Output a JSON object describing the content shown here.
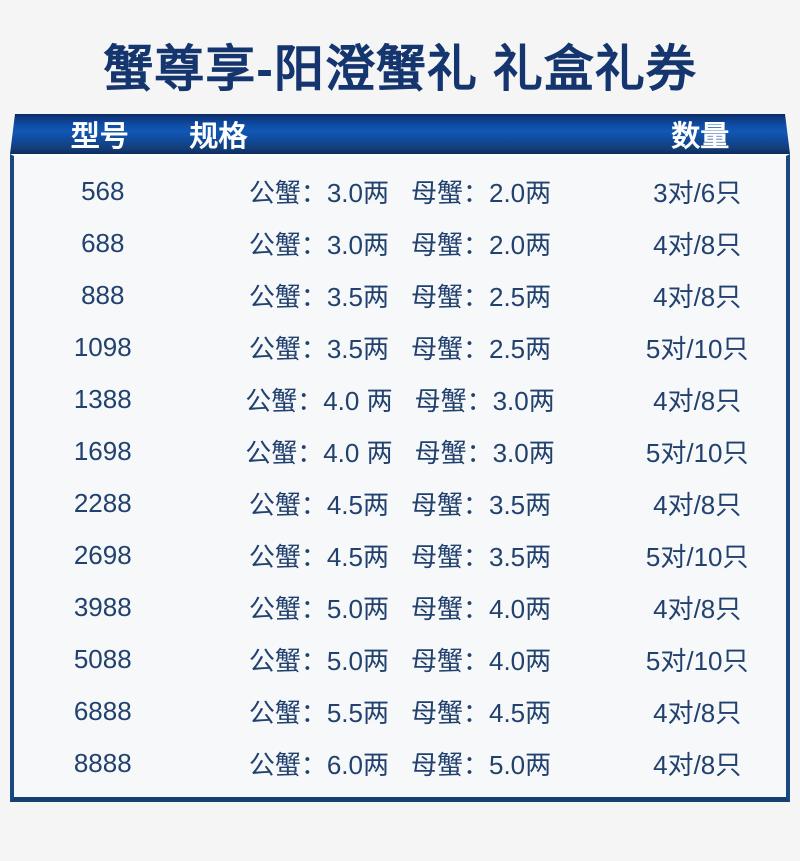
{
  "page": {
    "title": "蟹尊享-阳澄蟹礼 礼盒礼券",
    "accent_color": "#1157b5",
    "border_color": "#1b4782",
    "text_color": "#21416f",
    "title_color": "#14356d"
  },
  "table": {
    "columns": {
      "model": "型号",
      "spec": "规格",
      "quantity": "数量"
    },
    "rows": [
      {
        "model": "568",
        "spec_male": "公蟹：3.0两",
        "spec_female": "母蟹：2.0两",
        "quantity": "3对/6只"
      },
      {
        "model": "688",
        "spec_male": "公蟹：3.0两",
        "spec_female": "母蟹：2.0两",
        "quantity": "4对/8只"
      },
      {
        "model": "888",
        "spec_male": "公蟹：3.5两",
        "spec_female": "母蟹：2.5两",
        "quantity": "4对/8只"
      },
      {
        "model": "1098",
        "spec_male": "公蟹：3.5两",
        "spec_female": "母蟹：2.5两",
        "quantity": "5对/10只"
      },
      {
        "model": "1388",
        "spec_male": "公蟹：4.0 两",
        "spec_female": "母蟹：3.0两",
        "quantity": "4对/8只"
      },
      {
        "model": "1698",
        "spec_male": "公蟹：4.0 两",
        "spec_female": "母蟹：3.0两",
        "quantity": "5对/10只"
      },
      {
        "model": "2288",
        "spec_male": "公蟹：4.5两",
        "spec_female": "母蟹：3.5两",
        "quantity": "4对/8只"
      },
      {
        "model": "2698",
        "spec_male": "公蟹：4.5两",
        "spec_female": "母蟹：3.5两",
        "quantity": "5对/10只"
      },
      {
        "model": "3988",
        "spec_male": "公蟹：5.0两",
        "spec_female": "母蟹：4.0两",
        "quantity": "4对/8只"
      },
      {
        "model": "5088",
        "spec_male": "公蟹：5.0两",
        "spec_female": "母蟹：4.0两",
        "quantity": "5对/10只"
      },
      {
        "model": "6888",
        "spec_male": "公蟹：5.5两",
        "spec_female": "母蟹：4.5两",
        "quantity": "4对/8只"
      },
      {
        "model": "8888",
        "spec_male": "公蟹：6.0两",
        "spec_female": "母蟹：5.0两",
        "quantity": "4对/8只"
      }
    ]
  }
}
